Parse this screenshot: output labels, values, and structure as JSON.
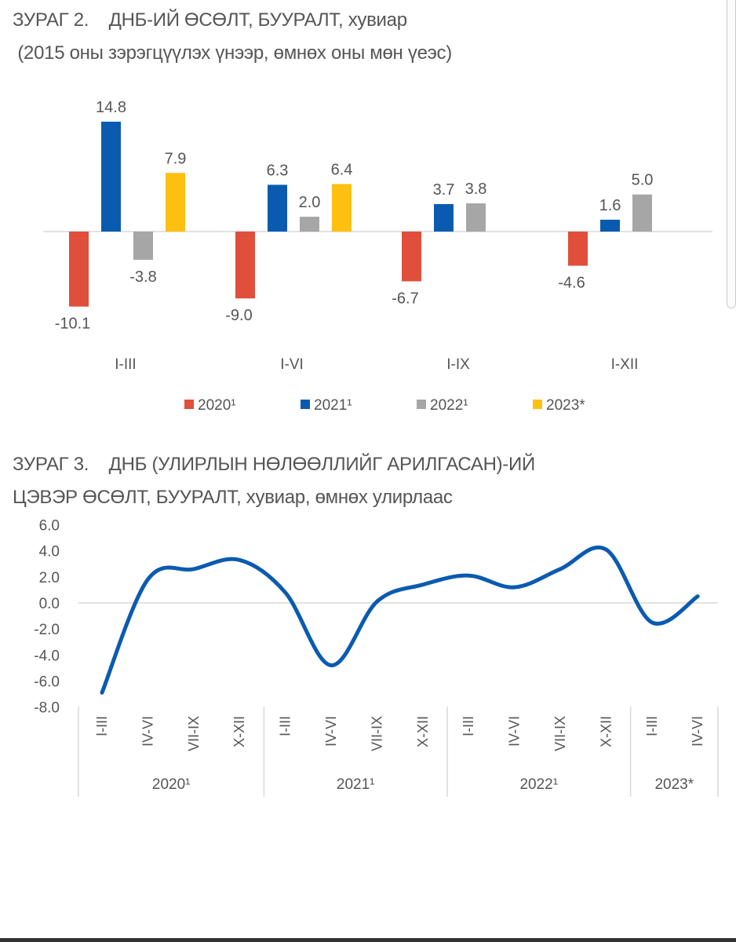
{
  "chart_data": [
    {
      "type": "bar",
      "title": "ЗУРАГ 2.    ДНБ-ИЙ ӨСӨЛТ, БУУРАЛТ, хувиар",
      "subtitle": " (2015 оны зэрэгцүүлэх үнээр, өмнөх оны мөн үеэс)",
      "categories": [
        "I-III",
        "I-VI",
        "I-IX",
        "I-XII"
      ],
      "series": [
        {
          "name": "2020¹",
          "color": "#e04e3c",
          "values": [
            -10.1,
            -9.0,
            -6.7,
            -4.6
          ]
        },
        {
          "name": "2021¹",
          "color": "#0a5bb0",
          "values": [
            14.8,
            6.3,
            3.7,
            1.6
          ]
        },
        {
          "name": "2022¹",
          "color": "#a6a6a6",
          "values": [
            -3.8,
            2.0,
            3.8,
            5.0
          ]
        },
        {
          "name": "2023*",
          "color": "#fdc010",
          "values": [
            7.9,
            6.4,
            null,
            null
          ]
        }
      ],
      "legend": "bottom",
      "grid": false
    },
    {
      "type": "line",
      "title": "ЗУРАГ 3.    ДНБ (УЛИРЛЫН НӨЛӨӨЛЛИЙГ АРИЛГАСАН)-ИЙ",
      "subtitle": "ЦЭВЭР ӨСӨЛТ, БУУРАЛТ, хувиар, өмнөх улирлаас",
      "ylim": [
        -8.0,
        6.0
      ],
      "yticks": [
        "6.0",
        "4.0",
        "2.0",
        "0.0",
        "-2.0",
        "-4.0",
        "-6.0",
        "-8.0"
      ],
      "groups": [
        {
          "label": "2020¹",
          "quarters": [
            "I-III",
            "IV-VI",
            "VII-IX",
            "X-XII"
          ]
        },
        {
          "label": "2021¹",
          "quarters": [
            "I-III",
            "IV-VI",
            "VII-IX",
            "X-XII"
          ]
        },
        {
          "label": "2022¹",
          "quarters": [
            "I-III",
            "IV-VI",
            "VII-IX",
            "X-XII"
          ]
        },
        {
          "label": "2023*",
          "quarters": [
            "I-III",
            "IV-VI"
          ]
        }
      ],
      "series": [
        {
          "color": "#0a5bb0",
          "values": [
            -6.9,
            1.8,
            2.6,
            3.3,
            0.8,
            -4.8,
            0.1,
            1.4,
            2.1,
            1.2,
            2.6,
            4.1,
            -1.5,
            0.5
          ]
        }
      ],
      "grid": false
    }
  ]
}
